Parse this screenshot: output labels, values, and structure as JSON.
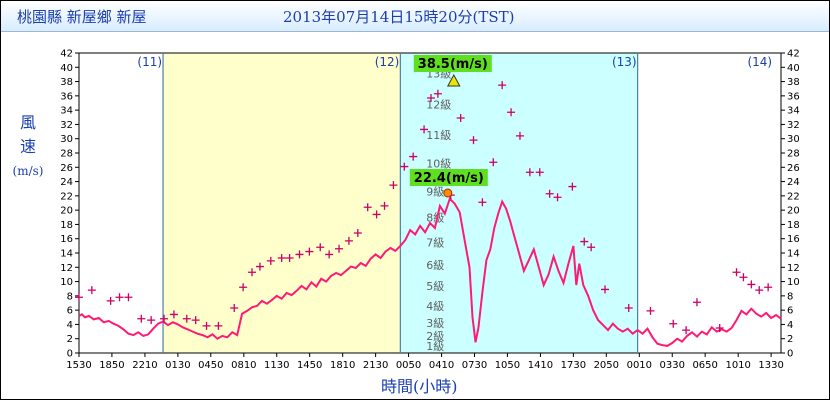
{
  "header": {
    "station": "桃園縣 新屋鄉 新屋",
    "datetime": "2013年07月14日15時20分(TST)"
  },
  "axes": {
    "ylabel_chars": [
      "風",
      "速"
    ],
    "yunit": "(m/s)",
    "xlabel": "時間(小時)"
  },
  "colors": {
    "before_bg": "#ffffcc",
    "during_bg": "#ccffff",
    "line": "#ff1a75",
    "marker": "#cc0066",
    "label_bg": "#5ee020",
    "day_line": "#4c7fa8"
  },
  "chart_data": {
    "type": "line",
    "ylim": [
      0,
      42
    ],
    "yticks": [
      0,
      2,
      4,
      6,
      8,
      10,
      12,
      14,
      16,
      18,
      20,
      22,
      24,
      26,
      28,
      30,
      32,
      34,
      36,
      38,
      40,
      42
    ],
    "xlim": [
      0,
      71
    ],
    "x_unit": "hours from 2013-07-11 15:30",
    "x_ticks": [
      {
        "x": 0,
        "label": "1530"
      },
      {
        "x": 3.33,
        "label": "1850"
      },
      {
        "x": 6.67,
        "label": "2210"
      },
      {
        "x": 10,
        "label": "0130"
      },
      {
        "x": 13.33,
        "label": "0450"
      },
      {
        "x": 16.67,
        "label": "0810"
      },
      {
        "x": 20,
        "label": "1130"
      },
      {
        "x": 23.33,
        "label": "1450"
      },
      {
        "x": 26.67,
        "label": "1810"
      },
      {
        "x": 30,
        "label": "2130"
      },
      {
        "x": 33.33,
        "label": "0050"
      },
      {
        "x": 36.67,
        "label": "0410"
      },
      {
        "x": 40,
        "label": "0730"
      },
      {
        "x": 43.33,
        "label": "1050"
      },
      {
        "x": 46.67,
        "label": "1410"
      },
      {
        "x": 50,
        "label": "1730"
      },
      {
        "x": 53.33,
        "label": "2050"
      },
      {
        "x": 56.67,
        "label": "0010"
      },
      {
        "x": 60,
        "label": "0330"
      },
      {
        "x": 63.33,
        "label": "0650"
      },
      {
        "x": 66.67,
        "label": "1010"
      },
      {
        "x": 70,
        "label": "1330"
      }
    ],
    "day_markers": [
      {
        "x": 8.5,
        "label": "(11)"
      },
      {
        "x": 32.5,
        "label": "(12)"
      },
      {
        "x": 56.5,
        "label": "(13)"
      },
      {
        "x": 70.2,
        "label": "(14)"
      }
    ],
    "bands": [
      {
        "name": "before",
        "from": 8.5,
        "to": 32.5
      },
      {
        "name": "during",
        "from": 32.5,
        "to": 56.5
      }
    ],
    "beaufort_levels": [
      {
        "y": 1.0,
        "label": "1級"
      },
      {
        "y": 2.4,
        "label": "2級"
      },
      {
        "y": 4.2,
        "label": "3級"
      },
      {
        "y": 6.6,
        "label": "4級"
      },
      {
        "y": 9.4,
        "label": "5級"
      },
      {
        "y": 12.3,
        "label": "6級"
      },
      {
        "y": 15.5,
        "label": "7級"
      },
      {
        "y": 19.0,
        "label": "8級"
      },
      {
        "y": 22.6,
        "label": "9級"
      },
      {
        "y": 26.5,
        "label": "10級"
      },
      {
        "y": 30.5,
        "label": "11級"
      },
      {
        "y": 34.8,
        "label": "12級"
      },
      {
        "y": 39.1,
        "label": "13級"
      }
    ],
    "series": [
      {
        "type": "line",
        "points": [
          [
            0,
            5.2
          ],
          [
            0.3,
            5.4
          ],
          [
            0.6,
            5.0
          ],
          [
            1,
            5.2
          ],
          [
            1.5,
            4.7
          ],
          [
            2,
            4.9
          ],
          [
            2.5,
            4.3
          ],
          [
            3,
            4.5
          ],
          [
            3.5,
            4.1
          ],
          [
            4,
            3.8
          ],
          [
            4.5,
            3.3
          ],
          [
            5,
            2.7
          ],
          [
            5.5,
            2.5
          ],
          [
            6,
            2.9
          ],
          [
            6.5,
            2.4
          ],
          [
            7,
            2.6
          ],
          [
            7.5,
            3.4
          ],
          [
            8,
            4.1
          ],
          [
            8.5,
            4.4
          ],
          [
            9,
            3.9
          ],
          [
            9.5,
            4.3
          ],
          [
            10,
            4.0
          ],
          [
            10.5,
            3.6
          ],
          [
            11,
            3.3
          ],
          [
            11.5,
            3.0
          ],
          [
            12,
            2.7
          ],
          [
            12.5,
            2.5
          ],
          [
            13,
            2.2
          ],
          [
            13.5,
            2.6
          ],
          [
            14,
            2.0
          ],
          [
            14.5,
            2.4
          ],
          [
            15,
            2.2
          ],
          [
            15.5,
            2.9
          ],
          [
            16,
            2.5
          ],
          [
            16.5,
            5.5
          ],
          [
            17,
            5.9
          ],
          [
            17.5,
            6.4
          ],
          [
            18,
            6.6
          ],
          [
            18.5,
            7.3
          ],
          [
            19,
            6.9
          ],
          [
            19.5,
            7.4
          ],
          [
            20,
            8.0
          ],
          [
            20.5,
            7.6
          ],
          [
            21,
            8.4
          ],
          [
            21.5,
            8.1
          ],
          [
            22,
            8.7
          ],
          [
            22.5,
            9.4
          ],
          [
            23,
            8.9
          ],
          [
            23.5,
            9.9
          ],
          [
            24,
            9.3
          ],
          [
            24.5,
            10.4
          ],
          [
            25,
            10.0
          ],
          [
            25.5,
            10.8
          ],
          [
            26,
            11.2
          ],
          [
            26.5,
            10.9
          ],
          [
            27,
            11.5
          ],
          [
            27.5,
            12.1
          ],
          [
            28,
            11.9
          ],
          [
            28.5,
            12.6
          ],
          [
            29,
            12.2
          ],
          [
            29.5,
            13.2
          ],
          [
            30,
            13.8
          ],
          [
            30.5,
            13.3
          ],
          [
            31,
            14.2
          ],
          [
            31.5,
            14.7
          ],
          [
            32,
            14.3
          ],
          [
            32.5,
            15.0
          ],
          [
            33,
            15.8
          ],
          [
            33.5,
            17.2
          ],
          [
            34,
            16.6
          ],
          [
            34.5,
            17.8
          ],
          [
            35,
            16.9
          ],
          [
            35.5,
            18.2
          ],
          [
            36,
            17.5
          ],
          [
            36.5,
            20.6
          ],
          [
            37,
            19.5
          ],
          [
            37.5,
            21.6
          ],
          [
            38,
            20.9
          ],
          [
            38.5,
            19.7
          ],
          [
            39,
            15.8
          ],
          [
            39.5,
            12.0
          ],
          [
            39.8,
            5.0
          ],
          [
            40.1,
            1.5
          ],
          [
            40.4,
            3.5
          ],
          [
            40.8,
            8.5
          ],
          [
            41.2,
            13.0
          ],
          [
            41.6,
            14.5
          ],
          [
            42,
            17.5
          ],
          [
            42.4,
            19.5
          ],
          [
            42.8,
            21.2
          ],
          [
            43.2,
            20.2
          ],
          [
            43.6,
            18.5
          ],
          [
            44,
            16.5
          ],
          [
            44.5,
            14.0
          ],
          [
            45,
            11.5
          ],
          [
            45.5,
            13.0
          ],
          [
            46,
            14.5
          ],
          [
            46.5,
            12.0
          ],
          [
            47,
            9.5
          ],
          [
            47.5,
            11.0
          ],
          [
            48,
            13.5
          ],
          [
            48.5,
            11.5
          ],
          [
            49,
            9.8
          ],
          [
            49.5,
            12.5
          ],
          [
            50,
            15.0
          ],
          [
            50.3,
            9.5
          ],
          [
            50.6,
            12.5
          ],
          [
            51,
            9.5
          ],
          [
            51.5,
            8.0
          ],
          [
            52,
            6.0
          ],
          [
            52.5,
            4.6
          ],
          [
            53,
            3.9
          ],
          [
            53.5,
            3.2
          ],
          [
            54,
            4.1
          ],
          [
            54.5,
            3.4
          ],
          [
            55,
            3.0
          ],
          [
            55.5,
            3.4
          ],
          [
            56,
            2.7
          ],
          [
            56.5,
            3.2
          ],
          [
            57,
            2.7
          ],
          [
            57.5,
            3.4
          ],
          [
            58,
            2.2
          ],
          [
            58.5,
            1.3
          ],
          [
            59,
            1.1
          ],
          [
            59.5,
            1.0
          ],
          [
            60,
            1.4
          ],
          [
            60.5,
            2.0
          ],
          [
            61,
            1.6
          ],
          [
            61.5,
            2.4
          ],
          [
            62,
            2.9
          ],
          [
            62.5,
            2.3
          ],
          [
            63,
            3.0
          ],
          [
            63.5,
            2.6
          ],
          [
            64,
            3.6
          ],
          [
            64.5,
            3.0
          ],
          [
            65,
            3.3
          ],
          [
            65.5,
            3.0
          ],
          [
            66,
            3.5
          ],
          [
            66.5,
            4.6
          ],
          [
            67,
            5.9
          ],
          [
            67.5,
            5.4
          ],
          [
            68,
            6.2
          ],
          [
            68.5,
            5.5
          ],
          [
            69,
            5.1
          ],
          [
            69.5,
            5.6
          ],
          [
            70,
            4.9
          ],
          [
            70.5,
            5.3
          ],
          [
            71,
            4.8
          ]
        ]
      },
      {
        "type": "scatter",
        "points": [
          [
            0,
            7.8
          ],
          [
            1.3,
            8.8
          ],
          [
            3.2,
            7.3
          ],
          [
            4.1,
            7.8
          ],
          [
            5,
            7.8
          ],
          [
            6.3,
            4.8
          ],
          [
            7.3,
            4.6
          ],
          [
            8.6,
            4.8
          ],
          [
            9.6,
            5.4
          ],
          [
            10.9,
            4.8
          ],
          [
            11.8,
            4.6
          ],
          [
            12.9,
            3.8
          ],
          [
            14.1,
            3.8
          ],
          [
            15.7,
            6.3
          ],
          [
            16.6,
            9.2
          ],
          [
            17.5,
            11.3
          ],
          [
            18.3,
            12.1
          ],
          [
            19.4,
            12.9
          ],
          [
            20.5,
            13.3
          ],
          [
            21.3,
            13.3
          ],
          [
            22.3,
            13.8
          ],
          [
            23.3,
            14.2
          ],
          [
            24.4,
            14.8
          ],
          [
            25.3,
            13.8
          ],
          [
            26.3,
            14.6
          ],
          [
            27.3,
            15.7
          ],
          [
            28.2,
            16.8
          ],
          [
            29.2,
            20.4
          ],
          [
            30.1,
            19.4
          ],
          [
            30.9,
            20.6
          ],
          [
            31.8,
            23.5
          ],
          [
            32.9,
            26.1
          ],
          [
            33.8,
            27.5
          ],
          [
            34.9,
            31.3
          ],
          [
            35.6,
            35.7
          ],
          [
            36.3,
            36.3
          ],
          [
            37.6,
            22.1
          ],
          [
            38.6,
            32.9
          ],
          [
            39.9,
            29.8
          ],
          [
            40.8,
            21.1
          ],
          [
            41.9,
            26.7
          ],
          [
            42.8,
            37.5
          ],
          [
            43.7,
            33.7
          ],
          [
            44.6,
            30.4
          ],
          [
            45.6,
            25.3
          ],
          [
            46.6,
            25.3
          ],
          [
            47.6,
            22.3
          ],
          [
            48.4,
            21.8
          ],
          [
            49.9,
            23.3
          ],
          [
            51.1,
            15.6
          ],
          [
            51.8,
            14.8
          ],
          [
            53.2,
            8.9
          ],
          [
            55.6,
            6.3
          ],
          [
            57.8,
            5.9
          ],
          [
            60.1,
            4.1
          ],
          [
            61.4,
            3.2
          ],
          [
            62.5,
            7.1
          ],
          [
            64.8,
            3.5
          ],
          [
            66.5,
            11.3
          ],
          [
            67.2,
            10.6
          ],
          [
            68.0,
            9.6
          ],
          [
            68.8,
            8.8
          ],
          [
            69.7,
            9.2
          ]
        ]
      }
    ],
    "annotations": [
      {
        "label": "38.5(m/s)",
        "x": 37.4,
        "y": 38.5,
        "marker": "triangle"
      },
      {
        "label": "22.4(m/s)",
        "x": 37.3,
        "y": 22.4,
        "marker": "circle"
      }
    ]
  }
}
